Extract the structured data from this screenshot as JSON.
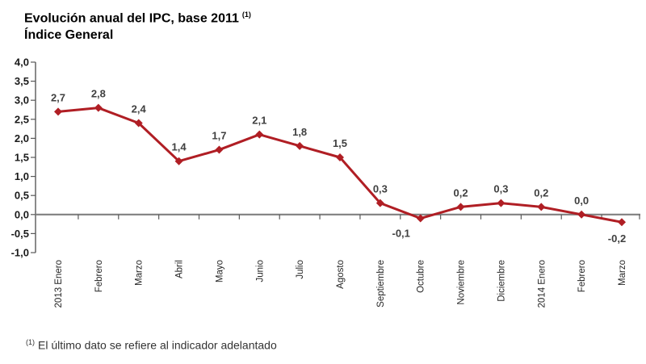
{
  "header": {
    "title_line1": "Evolución anual del IPC, base 2011",
    "title_superscript": "(1)",
    "title_line2": "Índice General"
  },
  "footnote": {
    "superscript": "(1)",
    "text": "El último dato se refiere al indicador adelantado"
  },
  "colors": {
    "series_line": "#B01E24",
    "marker": "#B01E24",
    "zero_axis": "#808080",
    "y_axis": "#595959",
    "tick": "#595959",
    "value_label": "#404040",
    "y_axis_label": "#1A1A1A",
    "month_label": "#262626",
    "title": "#000000",
    "footnote": "#333333"
  },
  "chart_data": {
    "type": "line",
    "title": "Evolución anual del IPC, base 2011 (1) — Índice General",
    "categories": [
      "2013 Enero",
      "Febrero",
      "Marzo",
      "Abril",
      "Mayo",
      "Junio",
      "Julio",
      "Agosto",
      "Septiembre",
      "Octubre",
      "Noviembre",
      "Diciembre",
      "2014 Enero",
      "Febrero",
      "Marzo"
    ],
    "values": [
      2.7,
      2.8,
      2.4,
      1.4,
      1.7,
      2.1,
      1.8,
      1.5,
      0.3,
      -0.1,
      0.2,
      0.3,
      0.2,
      0.0,
      -0.2
    ],
    "value_labels": [
      "2,7",
      "2,8",
      "2,4",
      "1,4",
      "1,7",
      "2,1",
      "1,8",
      "1,5",
      "0,3",
      "-0,1",
      "0,2",
      "0,3",
      "0,2",
      "0,0",
      "-0,2"
    ],
    "value_label_placement": [
      "above",
      "above",
      "above",
      "above",
      "above",
      "above",
      "above",
      "above",
      "above",
      "below-left",
      "above",
      "above",
      "above",
      "above",
      "below"
    ],
    "xlabel": "",
    "ylabel": "",
    "ylim": [
      -1.0,
      4.0
    ],
    "ytick_values": [
      4.0,
      3.5,
      3.0,
      2.5,
      2.0,
      1.5,
      1.0,
      0.5,
      0.0,
      -0.5,
      -1.0
    ],
    "ytick_labels": [
      "4,0",
      "3,5",
      "3,0",
      "2,5",
      "2,0",
      "1,5",
      "1,0",
      "0,5",
      "0,0",
      "-0,5",
      "-1,0"
    ],
    "grid": false,
    "legend": "none"
  }
}
